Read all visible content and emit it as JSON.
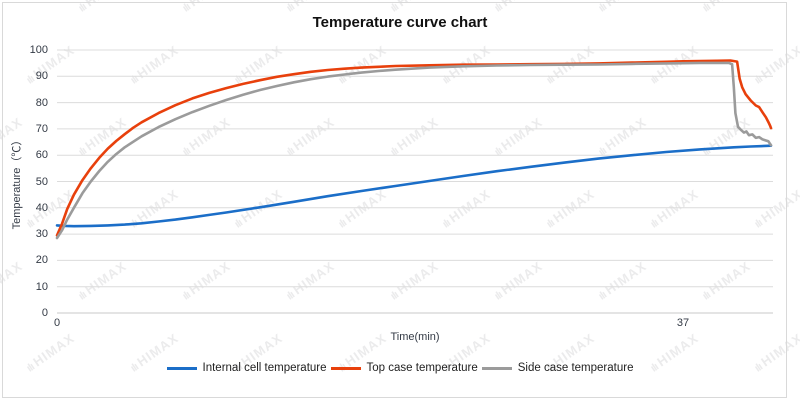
{
  "watermark": {
    "logo_glyph": "ılı",
    "text": "HIMAX"
  },
  "colors": {
    "grid": "#dcdcdc",
    "axis": "#c8c8c8",
    "tick_text": "#333a45",
    "title_text": "#111111",
    "series_blue": "#1b6ec8",
    "series_red": "#e8400c",
    "series_gray": "#9b9b9b"
  },
  "chart_data": {
    "type": "line",
    "title": "Temperature curve chart",
    "xlabel": "Time(min)",
    "ylabel": "Temperature（℃）",
    "xlim": [
      0,
      42.2
    ],
    "ylim": [
      0,
      100
    ],
    "yticks": [
      0,
      10,
      20,
      30,
      40,
      50,
      60,
      70,
      80,
      90,
      100
    ],
    "xticks": [
      0,
      37
    ],
    "grid": "horizontal",
    "legend_position": "bottom",
    "series": [
      {
        "name": "Internal cell temperature",
        "color": "#1b6ec8",
        "points": [
          [
            0,
            33.3
          ],
          [
            0.5,
            33.1
          ],
          [
            1,
            33.0
          ],
          [
            2,
            33.1
          ],
          [
            3,
            33.3
          ],
          [
            4,
            33.6
          ],
          [
            5,
            34.1
          ],
          [
            6,
            34.8
          ],
          [
            7,
            35.5
          ],
          [
            8,
            36.4
          ],
          [
            9,
            37.3
          ],
          [
            10,
            38.2
          ],
          [
            12,
            40.2
          ],
          [
            14,
            42.3
          ],
          [
            16,
            44.4
          ],
          [
            18,
            46.4
          ],
          [
            20,
            48.3
          ],
          [
            22,
            50.2
          ],
          [
            24,
            52.1
          ],
          [
            26,
            53.9
          ],
          [
            28,
            55.6
          ],
          [
            30,
            57.2
          ],
          [
            32,
            58.7
          ],
          [
            34,
            60.0
          ],
          [
            36,
            61.2
          ],
          [
            38,
            62.2
          ],
          [
            40,
            63.0
          ],
          [
            41,
            63.3
          ],
          [
            42.2,
            63.6
          ]
        ]
      },
      {
        "name": "Top case temperature",
        "color": "#e8400c",
        "points": [
          [
            0,
            29.5
          ],
          [
            0.3,
            34
          ],
          [
            0.6,
            39.5
          ],
          [
            1,
            45
          ],
          [
            1.5,
            50.5
          ],
          [
            2,
            55
          ],
          [
            2.5,
            59
          ],
          [
            3,
            62.5
          ],
          [
            3.5,
            65.4
          ],
          [
            4,
            68
          ],
          [
            4.5,
            70.4
          ],
          [
            5,
            72.5
          ],
          [
            6,
            76
          ],
          [
            7,
            79
          ],
          [
            8,
            81.6
          ],
          [
            9,
            83.7
          ],
          [
            10,
            85.5
          ],
          [
            11,
            87.1
          ],
          [
            12,
            88.5
          ],
          [
            13,
            89.8
          ],
          [
            14,
            90.8
          ],
          [
            15,
            91.7
          ],
          [
            16,
            92.4
          ],
          [
            17,
            92.9
          ],
          [
            18,
            93.3
          ],
          [
            19,
            93.6
          ],
          [
            20,
            93.9
          ],
          [
            22,
            94.2
          ],
          [
            24,
            94.4
          ],
          [
            26,
            94.5
          ],
          [
            28,
            94.6
          ],
          [
            30,
            94.7
          ],
          [
            32,
            94.9
          ],
          [
            34,
            95.2
          ],
          [
            36,
            95.5
          ],
          [
            37,
            95.7
          ],
          [
            38,
            95.8
          ],
          [
            39,
            95.9
          ],
          [
            39.8,
            96.0
          ],
          [
            40.2,
            95.6
          ],
          [
            40.35,
            89.0
          ],
          [
            40.5,
            85.8
          ],
          [
            40.7,
            83.2
          ],
          [
            41,
            80.8
          ],
          [
            41.3,
            78.9
          ],
          [
            41.5,
            78.3
          ],
          [
            41.7,
            76.3
          ],
          [
            41.9,
            74.4
          ],
          [
            42.05,
            72.6
          ],
          [
            42.15,
            71.2
          ],
          [
            42.2,
            70.3
          ]
        ]
      },
      {
        "name": "Side case temperature",
        "color": "#9b9b9b",
        "points": [
          [
            0,
            28.5
          ],
          [
            0.3,
            31.5
          ],
          [
            0.6,
            35.5
          ],
          [
            1,
            40
          ],
          [
            1.5,
            45.5
          ],
          [
            2,
            50
          ],
          [
            2.5,
            54
          ],
          [
            3,
            57.5
          ],
          [
            3.5,
            60.4
          ],
          [
            4,
            63
          ],
          [
            5,
            67.2
          ],
          [
            6,
            70.7
          ],
          [
            7,
            73.7
          ],
          [
            8,
            76.4
          ],
          [
            9,
            78.8
          ],
          [
            10,
            81
          ],
          [
            11,
            83
          ],
          [
            12,
            84.8
          ],
          [
            13,
            86.3
          ],
          [
            14,
            87.7
          ],
          [
            15,
            88.9
          ],
          [
            16,
            89.9
          ],
          [
            17,
            90.7
          ],
          [
            18,
            91.4
          ],
          [
            19,
            92
          ],
          [
            20,
            92.5
          ],
          [
            22,
            93.3
          ],
          [
            24,
            93.8
          ],
          [
            26,
            94.1
          ],
          [
            28,
            94.3
          ],
          [
            30,
            94.4
          ],
          [
            32,
            94.5
          ],
          [
            34,
            94.7
          ],
          [
            36,
            94.9
          ],
          [
            37,
            95.0
          ],
          [
            38,
            95.1
          ],
          [
            39,
            95.1
          ],
          [
            39.7,
            95.1
          ],
          [
            39.9,
            94.6
          ],
          [
            40.0,
            86.0
          ],
          [
            40.1,
            76.0
          ],
          [
            40.25,
            70.8
          ],
          [
            40.4,
            69.8
          ],
          [
            40.6,
            68.6
          ],
          [
            40.75,
            69.0
          ],
          [
            40.9,
            67.6
          ],
          [
            41.1,
            67.9
          ],
          [
            41.3,
            66.6
          ],
          [
            41.5,
            66.9
          ],
          [
            41.7,
            66.0
          ],
          [
            41.9,
            65.6
          ],
          [
            42.05,
            65.3
          ],
          [
            42.15,
            64.3
          ],
          [
            42.2,
            63.8
          ]
        ]
      }
    ]
  }
}
